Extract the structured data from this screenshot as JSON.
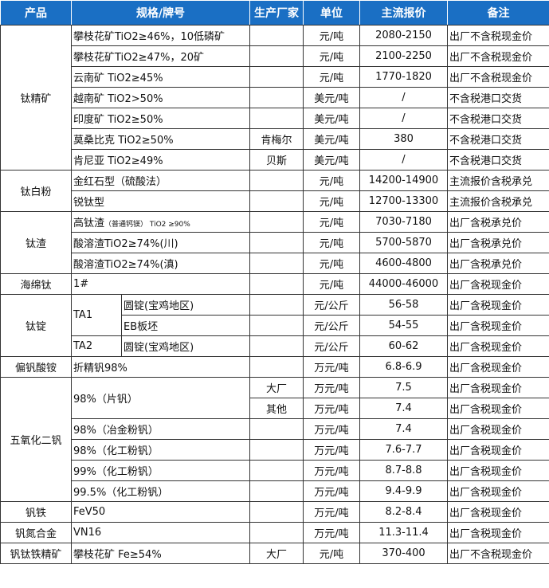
{
  "colors": {
    "header_bg": "#1a6fc4",
    "header_text": "#ffffff",
    "border": "#333333"
  },
  "headers": {
    "product": "产品",
    "spec": "规格/牌号",
    "maker": "生产厂家",
    "unit": "单位",
    "price": "主流报价",
    "note": "备注"
  },
  "groups": [
    {
      "product": "钛精矿",
      "items": [
        {
          "spec": "攀枝花矿TiO2≥46%，10低磷矿",
          "maker": "",
          "unit": "元/吨",
          "price": "2080-2150",
          "note": "出厂不含税现金价"
        },
        {
          "spec": "攀枝花矿TiO2≥47%，20矿",
          "maker": "",
          "unit": "元/吨",
          "price": "2100-2250",
          "note": "出厂不含税现金价"
        },
        {
          "spec": "云南矿 TiO2≥45%",
          "maker": "",
          "unit": "元/吨",
          "price": "1770-1820",
          "note": "出厂不含税现金价"
        },
        {
          "spec": "越南矿 TiO2>50%",
          "maker": "",
          "unit": "美元/吨",
          "price": "/",
          "note": "不含税港口交货"
        },
        {
          "spec": "印度矿 TiO2≥50%",
          "maker": "",
          "unit": "美元/吨",
          "price": "/",
          "note": "不含税港口交货"
        },
        {
          "spec": "莫桑比克 TiO2≥50%",
          "maker": "肯梅尔",
          "unit": "美元/吨",
          "price": "380",
          "note": "不含税港口交货"
        },
        {
          "spec": "肯尼亚 TiO2≥49%",
          "maker": "贝斯",
          "unit": "美元/吨",
          "price": "/",
          "note": "不含税港口交货"
        }
      ]
    },
    {
      "product": "钛白粉",
      "items": [
        {
          "spec": "金红石型（硫酸法）",
          "maker": "",
          "unit": "元/吨",
          "price": "14200-14900",
          "note": "主流报价含税承兑"
        },
        {
          "spec": "锐钛型",
          "maker": "",
          "unit": "元/吨",
          "price": "12700-13300",
          "note": "主流报价含税承兑"
        }
      ]
    },
    {
      "product": "钛渣",
      "items": [
        {
          "spec": "高钛渣",
          "spec_small": "（普通钙镁） TiO2 ≥90%",
          "maker": "",
          "unit": "元/吨",
          "price": "7030-7180",
          "note": "出厂含税承兑价"
        },
        {
          "spec": "酸溶渣TiO2≥74%(川)",
          "maker": "",
          "unit": "元/吨",
          "price": "5700-5870",
          "note": "出厂含税承兑价"
        },
        {
          "spec": "酸溶渣TiO2≥74%(滇)",
          "maker": "",
          "unit": "元/吨",
          "price": "4600-4800",
          "note": "出厂含税承兑价"
        }
      ]
    },
    {
      "product": "海绵钛",
      "items": [
        {
          "spec": "1#",
          "maker": "",
          "unit": "元/吨",
          "price": "44000-46000",
          "note": "出厂含税现金价"
        }
      ]
    },
    {
      "product": "钛锭",
      "items": [
        {
          "spec": "TA1",
          "sub": "圆锭(宝鸡地区)",
          "maker": "",
          "unit": "元/公斤",
          "price": "56-58",
          "note": "出厂含税现金价"
        },
        {
          "spec": "TA1",
          "sub": "EB板坯",
          "maker": "",
          "unit": "元/公斤",
          "price": "54-55",
          "note": "出厂含税现金价"
        },
        {
          "spec": "TA2",
          "sub": "圆锭(宝鸡地区)",
          "maker": "",
          "unit": "元/公斤",
          "price": "60-62",
          "note": "出厂含税现金价"
        }
      ]
    },
    {
      "product": "偏钒酸铵",
      "items": [
        {
          "spec": "折精钒98%",
          "maker": "",
          "unit": "万元/吨",
          "price": "6.8-6.9",
          "note": "出厂含税现金价"
        }
      ]
    },
    {
      "product": "五氧化二钒",
      "items": [
        {
          "spec": "98%（片钒）",
          "maker": "大厂",
          "unit": "万元/吨",
          "price": "7.5",
          "note": "出厂含税现金价"
        },
        {
          "spec": "98%（片钒）",
          "maker": "其他",
          "unit": "万元/吨",
          "price": "7.4",
          "note": "出厂含税现金价"
        },
        {
          "spec": "98%（冶金粉钒）",
          "maker": "",
          "unit": "万元/吨",
          "price": "7.4",
          "note": "出厂含税现金价"
        },
        {
          "spec": "98%（化工粉钒）",
          "maker": "",
          "unit": "万元/吨",
          "price": "7.6-7.7",
          "note": "出厂含税现金价"
        },
        {
          "spec": "99%（化工粉钒）",
          "maker": "",
          "unit": "万元/吨",
          "price": "8.7-8.8",
          "note": "出厂含税现金价"
        },
        {
          "spec": "99.5%（化工粉钒）",
          "maker": "",
          "unit": "万元/吨",
          "price": "9.4-9.9",
          "note": "出厂含税现金价"
        }
      ]
    },
    {
      "product": "钒铁",
      "items": [
        {
          "spec": "FeV50",
          "maker": "",
          "unit": "万元/吨",
          "price": "8.2-8.4",
          "note": "出厂含税现金价"
        }
      ]
    },
    {
      "product": "钒氮合金",
      "items": [
        {
          "spec": "VN16",
          "maker": "",
          "unit": "万元/吨",
          "price": "11.3-11.4",
          "note": "出厂含税现金价"
        }
      ]
    },
    {
      "product": "钒钛铁精矿",
      "items": [
        {
          "spec": "攀枝花矿 Fe≥54%",
          "maker": "大厂",
          "unit": "元/吨",
          "price": "370-400",
          "note": "出厂不含税现金价"
        }
      ]
    }
  ]
}
